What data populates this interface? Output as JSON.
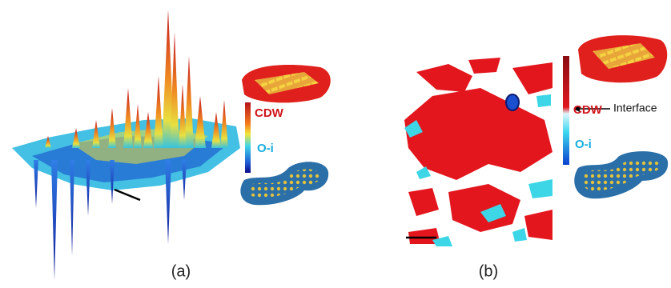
{
  "panels": [
    {
      "label": "(a)",
      "colorbar": {
        "top": "CDW",
        "bottom": "O-i"
      }
    },
    {
      "label": "(b)",
      "colorbar": {
        "top": "CDW",
        "interface": "Interface",
        "bottom": "O-i"
      }
    }
  ]
}
